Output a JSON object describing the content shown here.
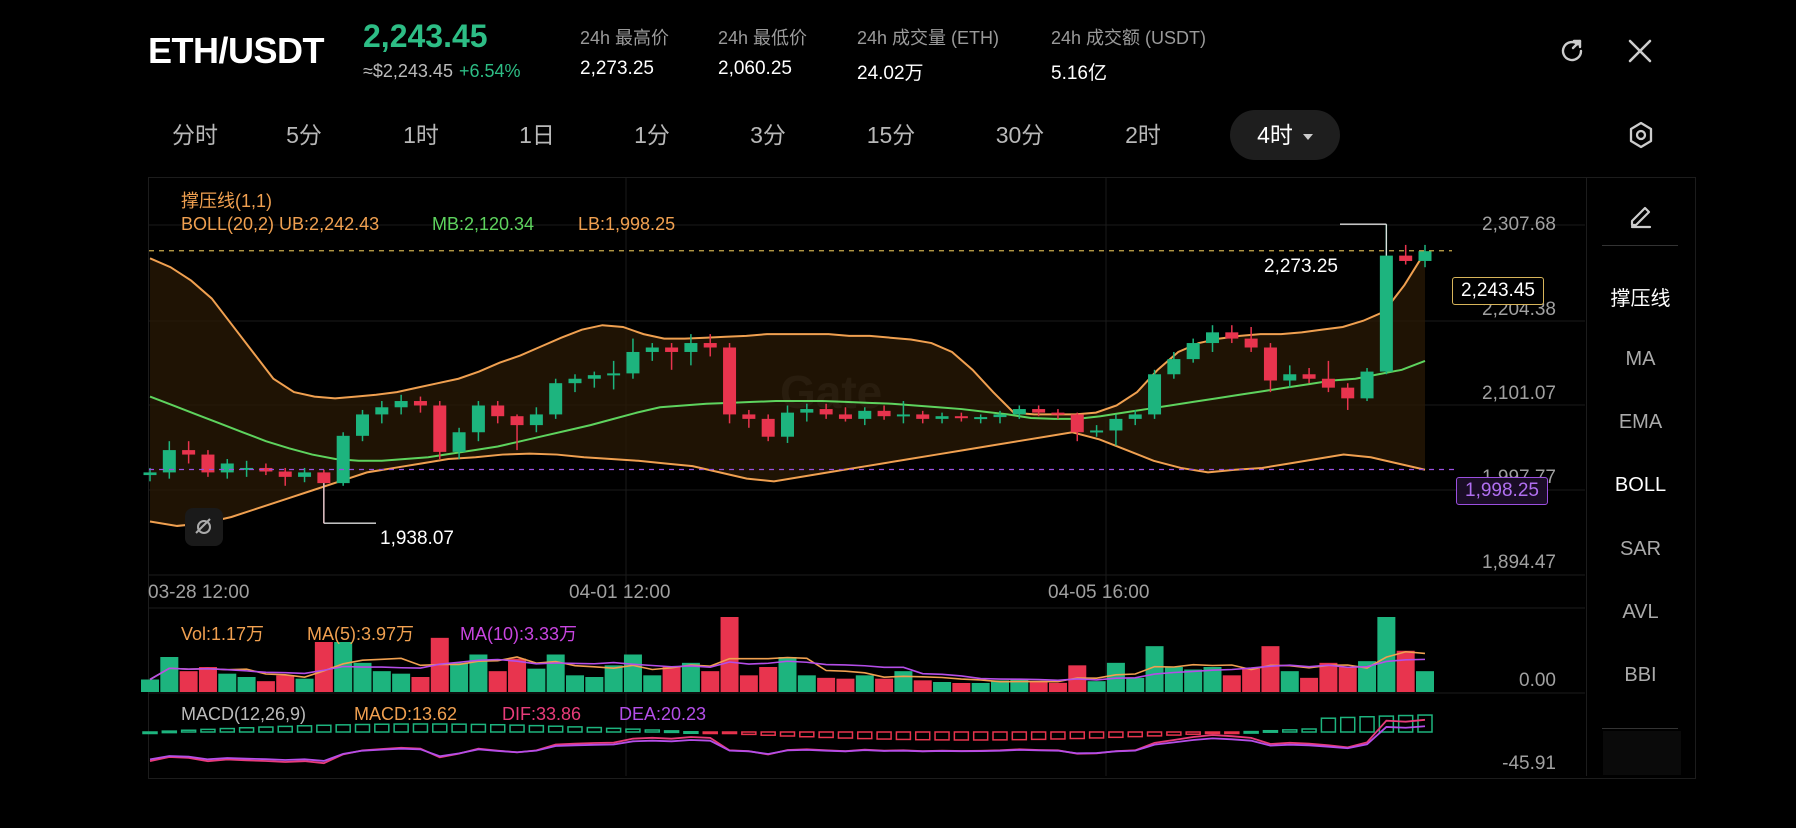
{
  "header": {
    "pair": "ETH/USDT",
    "price": "2,243.45",
    "usd_price": "≈$2,243.45",
    "change": "+6.54%",
    "stats": [
      {
        "label": "24h 最高价",
        "value": "2,273.25"
      },
      {
        "label": "24h 最低价",
        "value": "2,060.25"
      },
      {
        "label": "24h 成交量 (ETH)",
        "value": "24.02万"
      },
      {
        "label": "24h 成交额 (USDT)",
        "value": "5.16亿"
      }
    ],
    "icons": [
      "refresh-icon",
      "close-icon"
    ]
  },
  "tabs": [
    {
      "label": "分时"
    },
    {
      "label": "5分"
    },
    {
      "label": "1时"
    },
    {
      "label": "1日"
    },
    {
      "label": "1分"
    },
    {
      "label": "3分"
    },
    {
      "label": "15分"
    },
    {
      "label": "30分"
    },
    {
      "label": "2时"
    },
    {
      "label": "4时",
      "active": true
    }
  ],
  "sidebar": {
    "items": [
      {
        "label": "撑压线",
        "active": true
      },
      {
        "label": "MA"
      },
      {
        "label": "EMA"
      },
      {
        "label": "BOLL",
        "active": true
      },
      {
        "label": "SAR"
      },
      {
        "label": "AVL"
      },
      {
        "label": "BBI"
      }
    ]
  },
  "main_chart": {
    "indicator1": "撑压线(1,1)",
    "boll_label": "BOLL(20,2) UB:2,242.43",
    "mb_label": "MB:2,120.34",
    "lb_label": "LB:1,998.25",
    "watermark": "Gate",
    "y_ticks": [
      "2,307.68",
      "2,204.38",
      "2,101.07",
      "1,997.77",
      "1,894.47"
    ],
    "x_ticks": [
      "03-28 12:00",
      "04-01 12:00",
      "04-05 16:00"
    ],
    "high_mark": "2,273.25",
    "low_mark": "1,938.07",
    "current_tag": "2,243.45",
    "support_tag": "1,998.25"
  },
  "volume_chart": {
    "vol_label": "Vol:1.17万",
    "ma5_label": "MA(5):3.97万",
    "ma10_label": "MA(10):3.33万",
    "y_tick": "0.00"
  },
  "macd_chart": {
    "macd_title": "MACD(12,26,9)",
    "macd_label": "MACD:13.62",
    "dif_label": "DIF:33.86",
    "dea_label": "DEA:20.23",
    "y_tick": "-45.91"
  },
  "colors": {
    "up": "#1db47e",
    "down": "#e8344e",
    "accent_green": "#2dbd85",
    "boll_orange": "#f0a050",
    "boll_mb": "#5ed35e",
    "support_purple": "#9b4fe0"
  },
  "chart_data": {
    "type": "candlestick",
    "y_range": [
      1880,
      2325
    ],
    "candles": [
      {
        "o": 1992,
        "h": 2000,
        "l": 1985,
        "c": 1995
      },
      {
        "o": 1995,
        "h": 2030,
        "l": 1988,
        "c": 2020
      },
      {
        "o": 2020,
        "h": 2030,
        "l": 2005,
        "c": 2015
      },
      {
        "o": 2015,
        "h": 2020,
        "l": 1990,
        "c": 1995
      },
      {
        "o": 1995,
        "h": 2010,
        "l": 1988,
        "c": 2005
      },
      {
        "o": 2000,
        "h": 2008,
        "l": 1990,
        "c": 2000
      },
      {
        "o": 2000,
        "h": 2005,
        "l": 1992,
        "c": 1996
      },
      {
        "o": 1996,
        "h": 2000,
        "l": 1980,
        "c": 1990
      },
      {
        "o": 1990,
        "h": 2000,
        "l": 1984,
        "c": 1995
      },
      {
        "o": 1995,
        "h": 1998,
        "l": 1938,
        "c": 1983
      },
      {
        "o": 1983,
        "h": 2040,
        "l": 1980,
        "c": 2036
      },
      {
        "o": 2036,
        "h": 2065,
        "l": 2030,
        "c": 2060
      },
      {
        "o": 2060,
        "h": 2075,
        "l": 2050,
        "c": 2068
      },
      {
        "o": 2068,
        "h": 2082,
        "l": 2060,
        "c": 2075
      },
      {
        "o": 2075,
        "h": 2080,
        "l": 2062,
        "c": 2070
      },
      {
        "o": 2070,
        "h": 2075,
        "l": 2010,
        "c": 2018
      },
      {
        "o": 2018,
        "h": 2045,
        "l": 2010,
        "c": 2040
      },
      {
        "o": 2040,
        "h": 2075,
        "l": 2030,
        "c": 2070
      },
      {
        "o": 2070,
        "h": 2075,
        "l": 2050,
        "c": 2058
      },
      {
        "o": 2058,
        "h": 2060,
        "l": 2020,
        "c": 2048
      },
      {
        "o": 2048,
        "h": 2068,
        "l": 2040,
        "c": 2060
      },
      {
        "o": 2060,
        "h": 2100,
        "l": 2055,
        "c": 2095
      },
      {
        "o": 2095,
        "h": 2105,
        "l": 2085,
        "c": 2100
      },
      {
        "o": 2100,
        "h": 2108,
        "l": 2090,
        "c": 2104
      },
      {
        "o": 2104,
        "h": 2120,
        "l": 2088,
        "c": 2106
      },
      {
        "o": 2106,
        "h": 2145,
        "l": 2100,
        "c": 2130
      },
      {
        "o": 2130,
        "h": 2140,
        "l": 2120,
        "c": 2135
      },
      {
        "o": 2135,
        "h": 2140,
        "l": 2110,
        "c": 2130
      },
      {
        "o": 2130,
        "h": 2150,
        "l": 2115,
        "c": 2140
      },
      {
        "o": 2140,
        "h": 2150,
        "l": 2125,
        "c": 2135
      },
      {
        "o": 2135,
        "h": 2140,
        "l": 2050,
        "c": 2060
      },
      {
        "o": 2060,
        "h": 2065,
        "l": 2045,
        "c": 2055
      },
      {
        "o": 2055,
        "h": 2060,
        "l": 2030,
        "c": 2035
      },
      {
        "o": 2035,
        "h": 2070,
        "l": 2028,
        "c": 2062
      },
      {
        "o": 2062,
        "h": 2072,
        "l": 2052,
        "c": 2066
      },
      {
        "o": 2066,
        "h": 2072,
        "l": 2055,
        "c": 2060
      },
      {
        "o": 2060,
        "h": 2068,
        "l": 2052,
        "c": 2055
      },
      {
        "o": 2055,
        "h": 2068,
        "l": 2048,
        "c": 2064
      },
      {
        "o": 2064,
        "h": 2070,
        "l": 2054,
        "c": 2058
      },
      {
        "o": 2058,
        "h": 2075,
        "l": 2050,
        "c": 2060
      },
      {
        "o": 2060,
        "h": 2064,
        "l": 2050,
        "c": 2055
      },
      {
        "o": 2055,
        "h": 2062,
        "l": 2050,
        "c": 2058
      },
      {
        "o": 2058,
        "h": 2062,
        "l": 2052,
        "c": 2056
      },
      {
        "o": 2056,
        "h": 2060,
        "l": 2050,
        "c": 2057
      },
      {
        "o": 2057,
        "h": 2064,
        "l": 2050,
        "c": 2060
      },
      {
        "o": 2060,
        "h": 2070,
        "l": 2055,
        "c": 2066
      },
      {
        "o": 2066,
        "h": 2070,
        "l": 2058,
        "c": 2062
      },
      {
        "o": 2062,
        "h": 2066,
        "l": 2055,
        "c": 2060
      },
      {
        "o": 2060,
        "h": 2062,
        "l": 2030,
        "c": 2040
      },
      {
        "o": 2040,
        "h": 2048,
        "l": 2035,
        "c": 2042
      },
      {
        "o": 2042,
        "h": 2060,
        "l": 2025,
        "c": 2055
      },
      {
        "o": 2055,
        "h": 2065,
        "l": 2048,
        "c": 2060
      },
      {
        "o": 2060,
        "h": 2110,
        "l": 2055,
        "c": 2105
      },
      {
        "o": 2105,
        "h": 2130,
        "l": 2100,
        "c": 2122
      },
      {
        "o": 2122,
        "h": 2145,
        "l": 2118,
        "c": 2140
      },
      {
        "o": 2140,
        "h": 2160,
        "l": 2130,
        "c": 2152
      },
      {
        "o": 2152,
        "h": 2160,
        "l": 2140,
        "c": 2145
      },
      {
        "o": 2145,
        "h": 2158,
        "l": 2130,
        "c": 2135
      },
      {
        "o": 2135,
        "h": 2140,
        "l": 2085,
        "c": 2098
      },
      {
        "o": 2098,
        "h": 2115,
        "l": 2090,
        "c": 2105
      },
      {
        "o": 2105,
        "h": 2112,
        "l": 2095,
        "c": 2100
      },
      {
        "o": 2100,
        "h": 2120,
        "l": 2085,
        "c": 2090
      },
      {
        "o": 2090,
        "h": 2095,
        "l": 2065,
        "c": 2078
      },
      {
        "o": 2078,
        "h": 2112,
        "l": 2075,
        "c": 2108
      },
      {
        "o": 2108,
        "h": 2273,
        "l": 2105,
        "c": 2238
      },
      {
        "o": 2238,
        "h": 2250,
        "l": 2228,
        "c": 2232
      },
      {
        "o": 2232,
        "h": 2250,
        "l": 2225,
        "c": 2243
      }
    ],
    "boll_upper": [
      2235,
      2225,
      2210,
      2190,
      2160,
      2130,
      2100,
      2085,
      2080,
      2078,
      2080,
      2082,
      2085,
      2090,
      2095,
      2100,
      2108,
      2118,
      2126,
      2136,
      2146,
      2155,
      2160,
      2158,
      2150,
      2145,
      2145,
      2146,
      2147,
      2148,
      2150,
      2150,
      2150,
      2150,
      2148,
      2148,
      2146,
      2144,
      2140,
      2130,
      2110,
      2085,
      2062,
      2060,
      2060,
      2060,
      2062,
      2070,
      2085,
      2110,
      2130,
      2140,
      2145,
      2148,
      2150,
      2150,
      2152,
      2155,
      2158,
      2165,
      2175,
      2205,
      2242
    ],
    "boll_mid": [
      2080,
      2070,
      2060,
      2050,
      2040,
      2030,
      2022,
      2015,
      2010,
      2008,
      2008,
      2010,
      2012,
      2016,
      2020,
      2024,
      2030,
      2036,
      2042,
      2048,
      2055,
      2062,
      2068,
      2070,
      2072,
      2073,
      2074,
      2075,
      2075,
      2075,
      2074,
      2073,
      2072,
      2070,
      2068,
      2066,
      2063,
      2060,
      2056,
      2055,
      2055,
      2058,
      2062,
      2066,
      2070,
      2074,
      2078,
      2082,
      2086,
      2090,
      2094,
      2098,
      2100,
      2105,
      2110,
      2120
    ],
    "boll_lower": [
      1940,
      1935,
      1938,
      1945,
      1955,
      1965,
      1975,
      1985,
      1995,
      2000,
      2005,
      2010,
      2012,
      2015,
      2016,
      2015,
      2012,
      2010,
      2008,
      2005,
      2002,
      1995,
      1988,
      1985,
      1990,
      1995,
      2000,
      2005,
      2010,
      2015,
      2020,
      2025,
      2030,
      2035,
      2040,
      2032,
      2020,
      2008,
      2000,
      1995,
      1998,
      2000,
      2005,
      2010,
      2015,
      2012,
      2005,
      1998
    ]
  }
}
